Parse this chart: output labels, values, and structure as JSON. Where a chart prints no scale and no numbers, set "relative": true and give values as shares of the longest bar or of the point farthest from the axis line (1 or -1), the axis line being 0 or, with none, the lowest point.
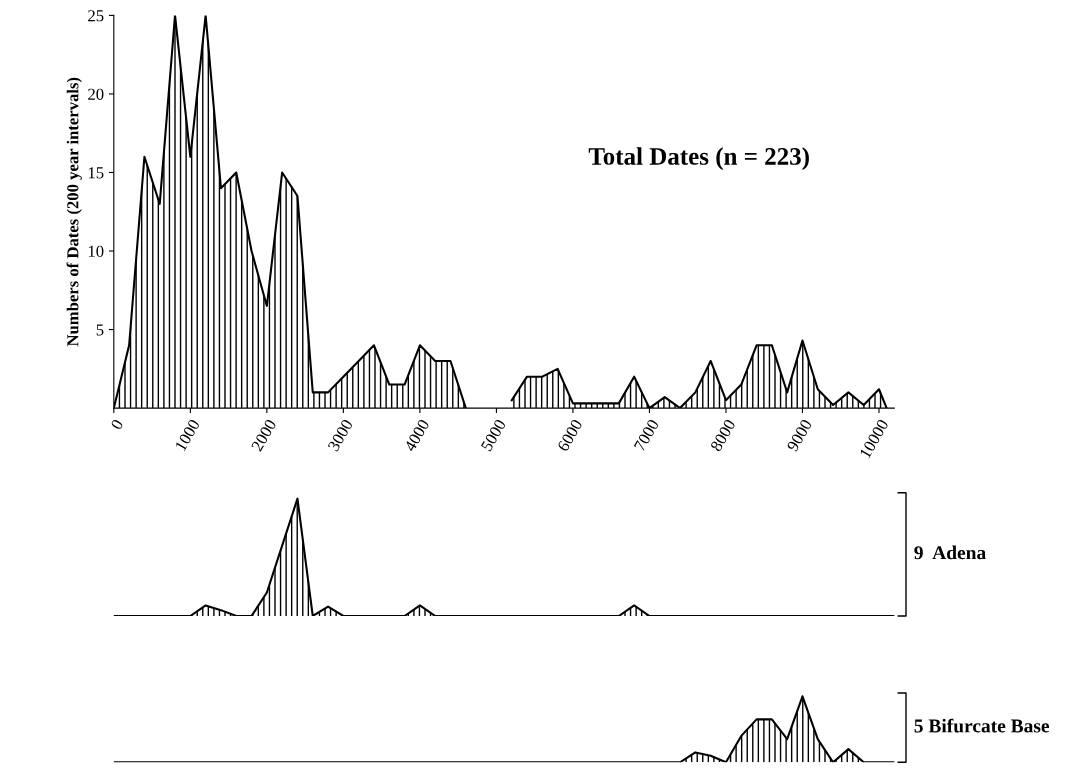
{
  "chart_data": [
    {
      "type": "area",
      "ylabel": "Numbers of Dates (200 year intervals)",
      "annotations": [
        "Total Dates (n = 223)"
      ],
      "xlim": [
        0,
        10200
      ],
      "xticks": [
        0,
        1000,
        2000,
        3000,
        4000,
        5000,
        6000,
        7000,
        8000,
        9000,
        10000
      ],
      "ylim": [
        0,
        25
      ],
      "yticks": [
        5,
        10,
        15,
        20,
        25
      ],
      "grid": false,
      "series": [
        {
          "color": "#000000",
          "x": [
            0,
            100,
            200,
            400,
            600,
            800,
            1000,
            1200,
            1400,
            1600,
            1800,
            2000,
            2200,
            2400,
            2600,
            2800,
            3000,
            3200,
            3400,
            3600,
            3800,
            4000,
            4200,
            4400,
            4600,
            4800,
            5000,
            5200,
            5400,
            5600,
            5800,
            6000,
            6200,
            6400,
            6600,
            6800,
            7000,
            7200,
            7400,
            7600,
            7800,
            8000,
            8200,
            8400,
            8600,
            8800,
            9000,
            9200,
            9400,
            9600,
            9800,
            10000,
            10100
          ],
          "values": [
            0,
            2,
            4,
            16,
            13,
            25,
            16,
            25,
            14,
            15,
            10,
            6.5,
            15,
            13.5,
            1,
            1,
            2,
            3,
            4,
            1.5,
            1.5,
            4,
            3,
            3,
            0,
            null,
            null,
            0.5,
            2,
            2,
            2.5,
            0.3,
            0.3,
            0.3,
            0.3,
            2,
            0,
            0.7,
            0,
            1,
            3,
            0.5,
            1.5,
            4,
            4,
            1,
            4.3,
            1.2,
            0.2,
            1,
            0.2,
            1.2,
            0
          ]
        }
      ]
    },
    {
      "type": "area",
      "relative": true,
      "annotations": [
        "9  Adena"
      ],
      "categories": [
        null,
        null,
        null,
        null,
        null,
        null,
        null,
        null,
        null,
        null,
        null,
        null,
        null,
        null,
        null,
        null,
        null,
        null,
        null,
        null,
        null,
        null,
        null,
        null,
        null,
        null,
        null,
        null,
        null,
        null,
        null,
        null,
        null,
        null,
        null,
        null,
        null,
        null,
        null,
        null,
        null,
        null,
        null,
        null,
        null,
        null,
        null,
        null,
        null,
        null,
        null,
        null
      ],
      "series": [
        {
          "color": "#000000",
          "values": [
            0,
            0,
            0,
            0,
            0,
            0,
            0.09,
            0.05,
            0,
            0,
            0.2,
            0.6,
            1.0,
            0,
            0.08,
            0,
            0,
            0,
            0,
            0,
            0.09,
            0,
            0,
            0,
            0,
            0,
            0,
            0,
            0,
            0,
            0,
            0,
            0,
            0,
            0.09,
            0,
            0,
            0,
            0,
            0,
            0,
            0,
            0,
            0,
            0,
            0,
            0,
            0,
            0,
            0,
            0,
            0
          ]
        }
      ]
    },
    {
      "type": "area",
      "relative": true,
      "annotations": [
        "5 Bifurcate Base"
      ],
      "categories": [
        null,
        null,
        null,
        null,
        null,
        null,
        null,
        null,
        null,
        null,
        null,
        null,
        null,
        null,
        null,
        null,
        null,
        null,
        null,
        null,
        null,
        null,
        null,
        null,
        null,
        null,
        null,
        null,
        null,
        null,
        null,
        null,
        null,
        null,
        null,
        null,
        null,
        null,
        null,
        null,
        null,
        null,
        null,
        null,
        null,
        null,
        null,
        null,
        null,
        null,
        null,
        null
      ],
      "series": [
        {
          "color": "#000000",
          "values": [
            0,
            0,
            0,
            0,
            0,
            0,
            0,
            0,
            0,
            0,
            0,
            0,
            0,
            0,
            0,
            0,
            0,
            0,
            0,
            0,
            0,
            0,
            0,
            0,
            0,
            0,
            0,
            0,
            0,
            0,
            0,
            0,
            0,
            0,
            0,
            0,
            0,
            0,
            0.15,
            0.1,
            0,
            0.4,
            0.65,
            0.65,
            0.35,
            1.0,
            0.35,
            0,
            0.2,
            0,
            0,
            0
          ]
        }
      ]
    }
  ]
}
